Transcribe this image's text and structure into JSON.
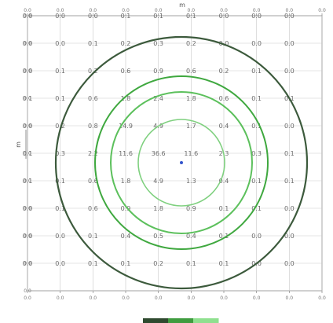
{
  "chart_data": {
    "type": "heatmap",
    "title": "",
    "xlabel": "m",
    "ylabel": "m",
    "grid": true,
    "x_ticks": [
      "0.0",
      "0.0",
      "0.0",
      "0.0",
      "0.0",
      "0.0",
      "0.0",
      "0.0",
      "0.0",
      "0.0"
    ],
    "y_ticks": [
      "0.0",
      "0.0",
      "0.0",
      "0.0",
      "0.0",
      "0.0",
      "0.0",
      "0.0",
      "0.0",
      "0.0",
      "0.0"
    ],
    "values": [
      [
        "0.0",
        "0.0",
        "0.0",
        "0.1",
        "0.1",
        "0.1",
        "0.0",
        "0.0",
        "0.0"
      ],
      [
        "0.0",
        "0.0",
        "0.1",
        "0.2",
        "0.3",
        "0.2",
        "0.0",
        "0.0",
        "0.0"
      ],
      [
        "0.0",
        "0.1",
        "0.2",
        "0.6",
        "0.9",
        "0.6",
        "0.2",
        "0.1",
        "0.0"
      ],
      [
        "0.1",
        "0.1",
        "0.6",
        "1.8",
        "2.4",
        "1.8",
        "0.6",
        "0.1",
        "0.1"
      ],
      [
        "0.0",
        "0.2",
        "0.8",
        "14.9",
        "4.9",
        "1.7",
        "0.4",
        "0.1",
        "0.0"
      ],
      [
        "0.1",
        "0.3",
        "2.2",
        "11.6",
        "36.6",
        "11.6",
        "2.3",
        "0.3",
        "0.1"
      ],
      [
        "0.1",
        "0.1",
        "0.6",
        "1.8",
        "4.9",
        "1.3",
        "0.4",
        "0.1",
        "0.1"
      ],
      [
        "0.0",
        "0.1",
        "0.6",
        "0.9",
        "1.8",
        "0.9",
        "0.1",
        "0.1",
        "0.0"
      ],
      [
        "0.0",
        "0.0",
        "0.1",
        "0.4",
        "0.5",
        "0.4",
        "0.1",
        "0.0",
        "0.0"
      ],
      [
        "0.0",
        "0.0",
        "0.1",
        "0.1",
        "0.2",
        "0.1",
        "0.1",
        "0.0",
        "0.0"
      ]
    ],
    "contours": [
      {
        "color": "#3c5a3c"
      },
      {
        "color": "#3fa83f"
      },
      {
        "color": "#5cc05c"
      },
      {
        "color": "#7fd07f"
      }
    ],
    "center_marker_color": "#3355cc",
    "colorbar": {
      "colors": [
        "#2f4a2f",
        "#3f9c3f",
        "#8fe08f"
      ]
    }
  }
}
